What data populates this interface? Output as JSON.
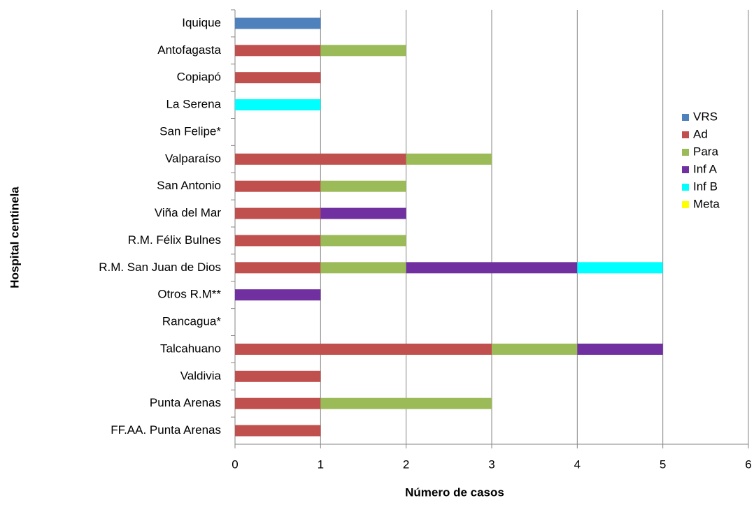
{
  "chart_data": {
    "type": "stacked-barh",
    "xlabel": "Número de casos",
    "ylabel": "Hospital centinela",
    "categories": [
      "Iquique",
      "Antofagasta",
      "Copiapó",
      "La Serena",
      "San Felipe*",
      "Valparaíso",
      "San Antonio",
      "Viña del Mar",
      "R.M. Félix Bulnes",
      "R.M. San Juan de Dios",
      "Otros R.M**",
      "Rancagua*",
      "Talcahuano",
      "Valdivia",
      "Punta Arenas",
      "FF.AA. Punta Arenas"
    ],
    "series": [
      {
        "name": "VRS",
        "color": "#4f81bd",
        "values": [
          1,
          0,
          0,
          0,
          0,
          0,
          0,
          0,
          0,
          0,
          0,
          0,
          0,
          0,
          0,
          0
        ]
      },
      {
        "name": "Ad",
        "color": "#c0504d",
        "values": [
          0,
          1,
          1,
          0,
          0,
          2,
          1,
          1,
          1,
          1,
          0,
          0,
          3,
          1,
          1,
          1
        ]
      },
      {
        "name": "Para",
        "color": "#9bbb59",
        "values": [
          0,
          1,
          0,
          0,
          0,
          1,
          1,
          0,
          1,
          1,
          0,
          0,
          1,
          0,
          2,
          0
        ]
      },
      {
        "name": "Inf A",
        "color": "#7030a0",
        "values": [
          0,
          0,
          0,
          0,
          0,
          0,
          0,
          1,
          0,
          2,
          1,
          0,
          1,
          0,
          0,
          0
        ]
      },
      {
        "name": "Inf B",
        "color": "#00ffff",
        "values": [
          0,
          0,
          0,
          1,
          0,
          0,
          0,
          0,
          0,
          1,
          0,
          0,
          0,
          0,
          0,
          0
        ]
      },
      {
        "name": "Meta",
        "color": "#ffff00",
        "values": [
          0,
          0,
          0,
          0,
          0,
          0,
          0,
          0,
          0,
          0,
          0,
          0,
          0,
          0,
          0,
          0
        ]
      }
    ],
    "xlim": [
      0,
      6
    ],
    "xticks": [
      0,
      1,
      2,
      3,
      4,
      5,
      6
    ],
    "grid": true,
    "legend": "right"
  }
}
